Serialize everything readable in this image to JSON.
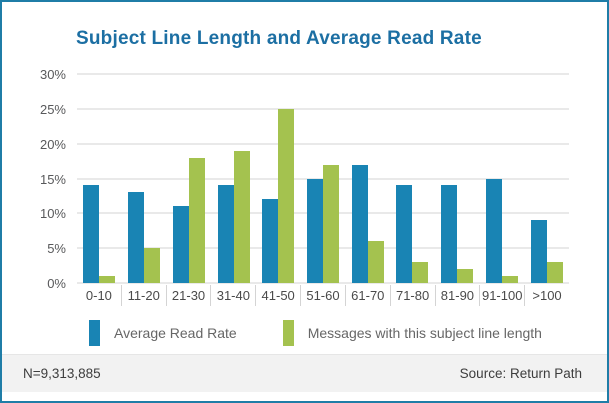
{
  "chart_data": {
    "type": "bar",
    "title": "Subject Line Length and Average Read Rate",
    "categories": [
      "0-10",
      "11-20",
      "21-30",
      "31-40",
      "41-50",
      "51-60",
      "61-70",
      "71-80",
      "81-90",
      "91-100",
      ">100"
    ],
    "series": [
      {
        "name": "Average Read Rate",
        "color": "#1984b4",
        "values": [
          14,
          13,
          11,
          14,
          12,
          15,
          17,
          14,
          14,
          15,
          9
        ]
      },
      {
        "name": "Messages with this subject line length",
        "color": "#a4c24f",
        "values": [
          1,
          5,
          18,
          19,
          25,
          17,
          6,
          3,
          2,
          1,
          3
        ]
      }
    ],
    "xlabel": "",
    "ylabel": "",
    "ylim": [
      0,
      30
    ],
    "yticks": [
      0,
      5,
      10,
      15,
      20,
      25,
      30
    ],
    "ytick_suffix": "%",
    "grid": true,
    "legend_position": "bottom"
  },
  "footer": {
    "sample_size": "N=9,313,885",
    "source": "Source: Return Path"
  },
  "colors": {
    "card_border": "#1f7da7",
    "top_accent": "#14465f",
    "title_text": "#1c6fa3",
    "bar_blue": "#1984b4",
    "bar_green": "#a4c24f",
    "gridline": "#e9e9e9",
    "footer_bg": "#f2f2f2"
  }
}
